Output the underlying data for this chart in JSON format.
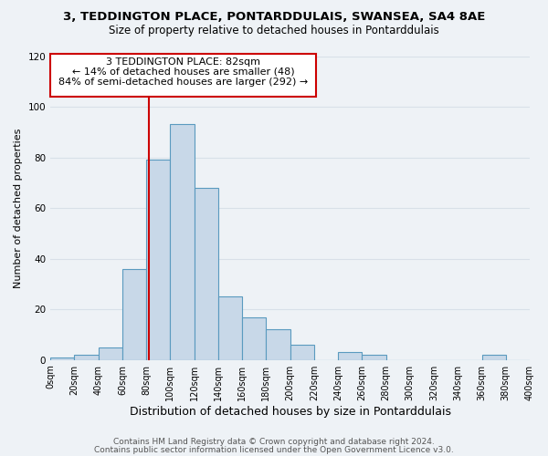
{
  "title_line1": "3, TEDDINGTON PLACE, PONTARDDULAIS, SWANSEA, SA4 8AE",
  "title_line2": "Size of property relative to detached houses in Pontarddulais",
  "xlabel": "Distribution of detached houses by size in Pontarddulais",
  "ylabel": "Number of detached properties",
  "bin_edges": [
    0,
    20,
    40,
    60,
    80,
    100,
    120,
    140,
    160,
    180,
    200,
    220,
    240,
    260,
    280,
    300,
    320,
    340,
    360,
    380,
    400
  ],
  "counts": [
    1,
    2,
    5,
    36,
    79,
    93,
    68,
    25,
    17,
    12,
    6,
    0,
    3,
    2,
    0,
    0,
    0,
    0,
    2,
    0
  ],
  "bar_color": "#c8d8e8",
  "bar_edge_color": "#5a9abf",
  "bar_edge_width": 0.8,
  "vline_x": 82,
  "vline_color": "#cc0000",
  "vline_linewidth": 1.5,
  "annotation_line1": "3 TEDDINGTON PLACE: 82sqm",
  "annotation_line2": "← 14% of detached houses are smaller (48)",
  "annotation_line3": "84% of semi-detached houses are larger (292) →",
  "annotation_box_color": "#ffffff",
  "annotation_box_edge_color": "#cc0000",
  "ylim": [
    0,
    120
  ],
  "yticks": [
    0,
    20,
    40,
    60,
    80,
    100,
    120
  ],
  "xtick_labels": [
    "0sqm",
    "20sqm",
    "40sqm",
    "60sqm",
    "80sqm",
    "100sqm",
    "120sqm",
    "140sqm",
    "160sqm",
    "180sqm",
    "200sqm",
    "220sqm",
    "240sqm",
    "260sqm",
    "280sqm",
    "300sqm",
    "320sqm",
    "340sqm",
    "360sqm",
    "380sqm",
    "400sqm"
  ],
  "grid_color": "#d8e0e8",
  "background_color": "#eef2f6",
  "footer_line1": "Contains HM Land Registry data © Crown copyright and database right 2024.",
  "footer_line2": "Contains public sector information licensed under the Open Government Licence v3.0.",
  "title_fontsize": 9.5,
  "subtitle_fontsize": 8.5,
  "xlabel_fontsize": 9,
  "ylabel_fontsize": 8,
  "annotation_fontsize": 8,
  "footer_fontsize": 6.5,
  "tick_fontsize": 7
}
